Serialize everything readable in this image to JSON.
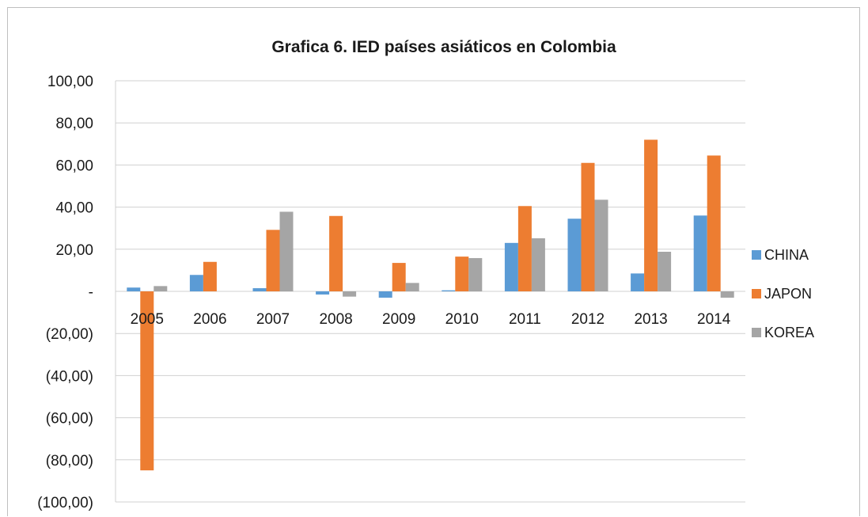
{
  "chart_data": {
    "type": "bar",
    "title": "Grafica 6. IED países asiáticos en Colombia",
    "xlabel": "",
    "ylabel": "",
    "categories": [
      "2005",
      "2006",
      "2007",
      "2008",
      "2009",
      "2010",
      "2011",
      "2012",
      "2013",
      "2014"
    ],
    "series": [
      {
        "name": "CHINA",
        "color": "#5b9bd5",
        "values": [
          1.8,
          7.8,
          1.5,
          -1.5,
          -3.0,
          0.5,
          23.0,
          34.5,
          8.5,
          36.0
        ]
      },
      {
        "name": "JAPON",
        "color": "#ed7d31",
        "values": [
          -85.0,
          14.0,
          29.2,
          35.8,
          13.5,
          16.5,
          40.5,
          61.0,
          72.0,
          64.5
        ]
      },
      {
        "name": "KOREA",
        "color": "#a5a5a5",
        "values": [
          2.5,
          0.0,
          37.8,
          -2.5,
          4.0,
          15.8,
          25.2,
          43.5,
          18.8,
          -3.0
        ]
      }
    ],
    "ylim": [
      -100,
      100
    ],
    "yticks": [
      100,
      80,
      60,
      40,
      20,
      0,
      -20,
      -40,
      -60,
      -80,
      -100
    ],
    "ytick_labels": [
      "100,00",
      "80,00",
      "60,00",
      "40,00",
      "20,00",
      "-",
      "(20,00)",
      "(40,00)",
      "(60,00)",
      "(80,00)",
      "(100,00)"
    ],
    "grid": true,
    "legend_position": "right"
  }
}
